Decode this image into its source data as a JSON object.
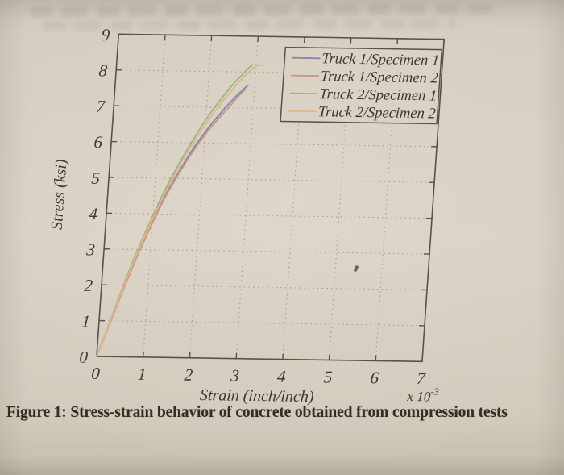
{
  "figure": {
    "caption": "Figure 1: Stress-strain behavior of concrete obtained from compression tests"
  },
  "colors": {
    "paper": "#d6cec0",
    "ink": "#3e3930",
    "frame": "#57524b",
    "grid": "#99917f",
    "legend_fill": "#dad3c5"
  },
  "chart_data": {
    "type": "line",
    "title": "",
    "xlabel": "Strain (inch/inch)",
    "ylabel": "Stress (ksi)",
    "x_offset_label": "x 10",
    "x_offset_exponent": "-3",
    "xlim": [
      0,
      7
    ],
    "ylim": [
      0,
      9
    ],
    "x_ticks": [
      0,
      1,
      2,
      3,
      4,
      5,
      6,
      7
    ],
    "y_ticks": [
      0,
      1,
      2,
      3,
      4,
      5,
      6,
      7,
      8,
      9
    ],
    "grid": true,
    "grid_style": "dotted",
    "legend_position": "top-right",
    "series": [
      {
        "name": "Truck 1/Specimen 1",
        "color": "#8589ac",
        "points": [
          [
            0,
            0
          ],
          [
            0.25,
            1.0
          ],
          [
            0.5,
            2.0
          ],
          [
            0.75,
            2.95
          ],
          [
            1,
            3.8
          ],
          [
            1.25,
            4.55
          ],
          [
            1.5,
            5.2
          ],
          [
            1.75,
            5.8
          ],
          [
            2,
            6.3
          ],
          [
            2.25,
            6.75
          ],
          [
            2.5,
            7.15
          ],
          [
            2.75,
            7.5
          ],
          [
            2.85,
            7.62
          ]
        ]
      },
      {
        "name": "Truck 1/Specimen 2",
        "color": "#cc938b",
        "points": [
          [
            0,
            0
          ],
          [
            0.25,
            0.98
          ],
          [
            0.5,
            1.98
          ],
          [
            0.75,
            2.9
          ],
          [
            1,
            3.74
          ],
          [
            1.25,
            4.5
          ],
          [
            1.5,
            5.14
          ],
          [
            1.75,
            5.72
          ],
          [
            2,
            6.22
          ],
          [
            2.25,
            6.66
          ],
          [
            2.5,
            7.05
          ],
          [
            2.7,
            7.38
          ],
          [
            2.8,
            7.5
          ]
        ]
      },
      {
        "name": "Truck 2/Specimen 1",
        "color": "#9db585",
        "points": [
          [
            0,
            0
          ],
          [
            0.25,
            1.05
          ],
          [
            0.5,
            2.12
          ],
          [
            0.75,
            3.08
          ],
          [
            1,
            3.95
          ],
          [
            1.25,
            4.75
          ],
          [
            1.5,
            5.45
          ],
          [
            1.75,
            6.08
          ],
          [
            2,
            6.65
          ],
          [
            2.25,
            7.15
          ],
          [
            2.5,
            7.6
          ],
          [
            2.7,
            7.9
          ],
          [
            2.85,
            8.12
          ],
          [
            2.92,
            8.2
          ]
        ]
      },
      {
        "name": "Truck 2/Specimen 2",
        "color": "#e0b587",
        "points": [
          [
            0,
            0
          ],
          [
            0.25,
            1.02
          ],
          [
            0.5,
            2.06
          ],
          [
            0.75,
            3.0
          ],
          [
            1,
            3.86
          ],
          [
            1.25,
            4.64
          ],
          [
            1.5,
            5.36
          ],
          [
            1.75,
            5.98
          ],
          [
            2,
            6.52
          ],
          [
            2.25,
            7.02
          ],
          [
            2.5,
            7.46
          ],
          [
            2.75,
            7.86
          ],
          [
            2.95,
            8.12
          ],
          [
            3.08,
            8.2
          ],
          [
            3.15,
            8.18
          ]
        ]
      }
    ]
  }
}
